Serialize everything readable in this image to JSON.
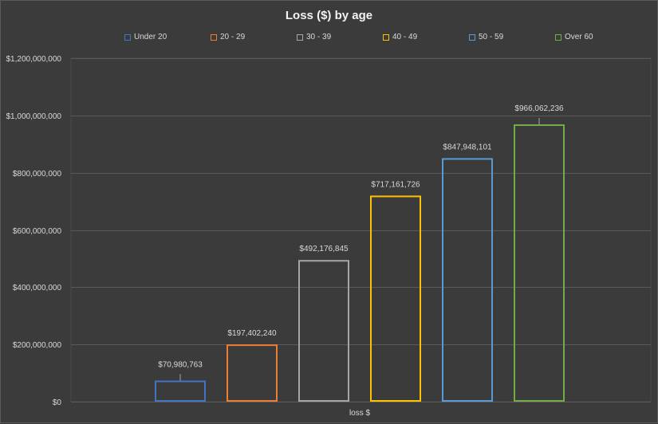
{
  "chart_data": {
    "type": "bar",
    "title": "Loss ($) by age",
    "xlabel": "loss $",
    "ylabel": "",
    "categories": [
      "loss $"
    ],
    "ylim": [
      0,
      1200000000
    ],
    "y_ticks": [
      0,
      200000000,
      400000000,
      600000000,
      800000000,
      1000000000,
      1200000000
    ],
    "y_tick_labels": [
      "$0",
      "$200,000,000",
      "$400,000,000",
      "$600,000,000",
      "$800,000,000",
      "$1,000,000,000",
      "$1,200,000,000"
    ],
    "grid": true,
    "legend_position": "top",
    "series": [
      {
        "name": "Under 20",
        "value": 70980763,
        "label": "$70,980,763",
        "color": "#4472c4"
      },
      {
        "name": "20 - 29",
        "value": 197402240,
        "label": "$197,402,240",
        "color": "#ed7d31"
      },
      {
        "name": "30 - 39",
        "value": 492176845,
        "label": "$492,176,845",
        "color": "#a5a5a5"
      },
      {
        "name": "40 - 49",
        "value": 717161726,
        "label": "$717,161,726",
        "color": "#ffc000"
      },
      {
        "name": "50 - 59",
        "value": 847948101,
        "label": "$847,948,101",
        "color": "#5b9bd5"
      },
      {
        "name": "Over 60",
        "value": 966062236,
        "label": "$966,062,236",
        "color": "#70ad47"
      }
    ]
  }
}
